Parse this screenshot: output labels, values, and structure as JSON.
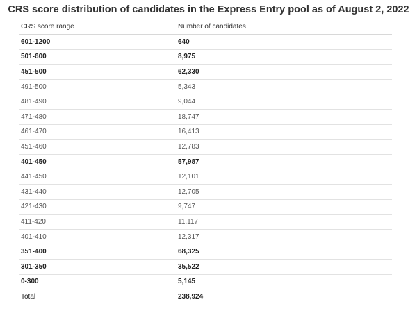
{
  "title": "CRS score distribution of candidates in the Express Entry pool as of August 2, 2022",
  "table": {
    "headers": [
      "CRS score range",
      "Number of candidates"
    ],
    "rows": [
      {
        "range": "601-1200",
        "count": "640",
        "bold": true
      },
      {
        "range": "501-600",
        "count": "8,975",
        "bold": true
      },
      {
        "range": "451-500",
        "count": "62,330",
        "bold": true
      },
      {
        "range": "491-500",
        "count": "5,343",
        "bold": false
      },
      {
        "range": "481-490",
        "count": "9,044",
        "bold": false
      },
      {
        "range": "471-480",
        "count": "18,747",
        "bold": false
      },
      {
        "range": "461-470",
        "count": "16,413",
        "bold": false
      },
      {
        "range": "451-460",
        "count": "12,783",
        "bold": false
      },
      {
        "range": "401-450",
        "count": "57,987",
        "bold": true
      },
      {
        "range": "441-450",
        "count": "12,101",
        "bold": false
      },
      {
        "range": "431-440",
        "count": "12,705",
        "bold": false
      },
      {
        "range": "421-430",
        "count": "9,747",
        "bold": false
      },
      {
        "range": "411-420",
        "count": "11,117",
        "bold": false
      },
      {
        "range": "401-410",
        "count": "12,317",
        "bold": false
      },
      {
        "range": "351-400",
        "count": "68,325",
        "bold": true
      },
      {
        "range": "301-350",
        "count": "35,522",
        "bold": true
      },
      {
        "range": "0-300",
        "count": "5,145",
        "bold": true
      }
    ],
    "total": {
      "label": "Total",
      "count": "238,924"
    }
  }
}
